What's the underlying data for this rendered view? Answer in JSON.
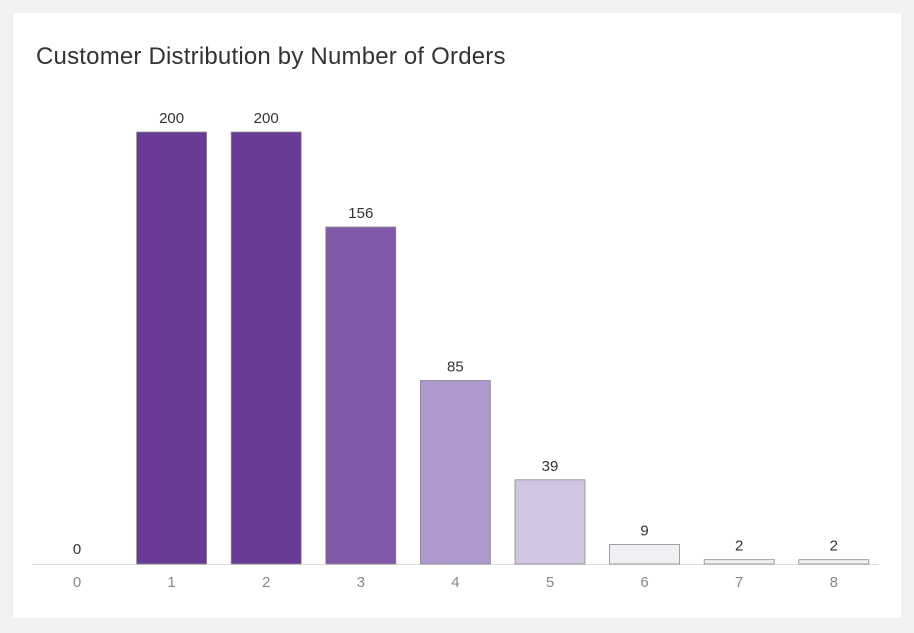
{
  "chart_data": {
    "type": "bar",
    "title": "Customer Distribution by Number of Orders",
    "xlabel": "",
    "ylabel": "",
    "categories": [
      "0",
      "1",
      "2",
      "3",
      "4",
      "5",
      "6",
      "7",
      "8"
    ],
    "values": [
      0,
      200,
      200,
      156,
      85,
      39,
      9,
      2,
      2
    ],
    "ylim": [
      0,
      200
    ],
    "grid": false,
    "legend": "none",
    "data_labels": true
  },
  "colors": {
    "bar_scale": [
      "#f0eff4",
      "#d1c5e2",
      "#ae98cd",
      "#8059a8",
      "#6a3a97"
    ],
    "bar_outline": "#8a8a8a",
    "axis_tick": "#dddddd",
    "background": "#f2f2f2",
    "card": "#ffffff"
  }
}
